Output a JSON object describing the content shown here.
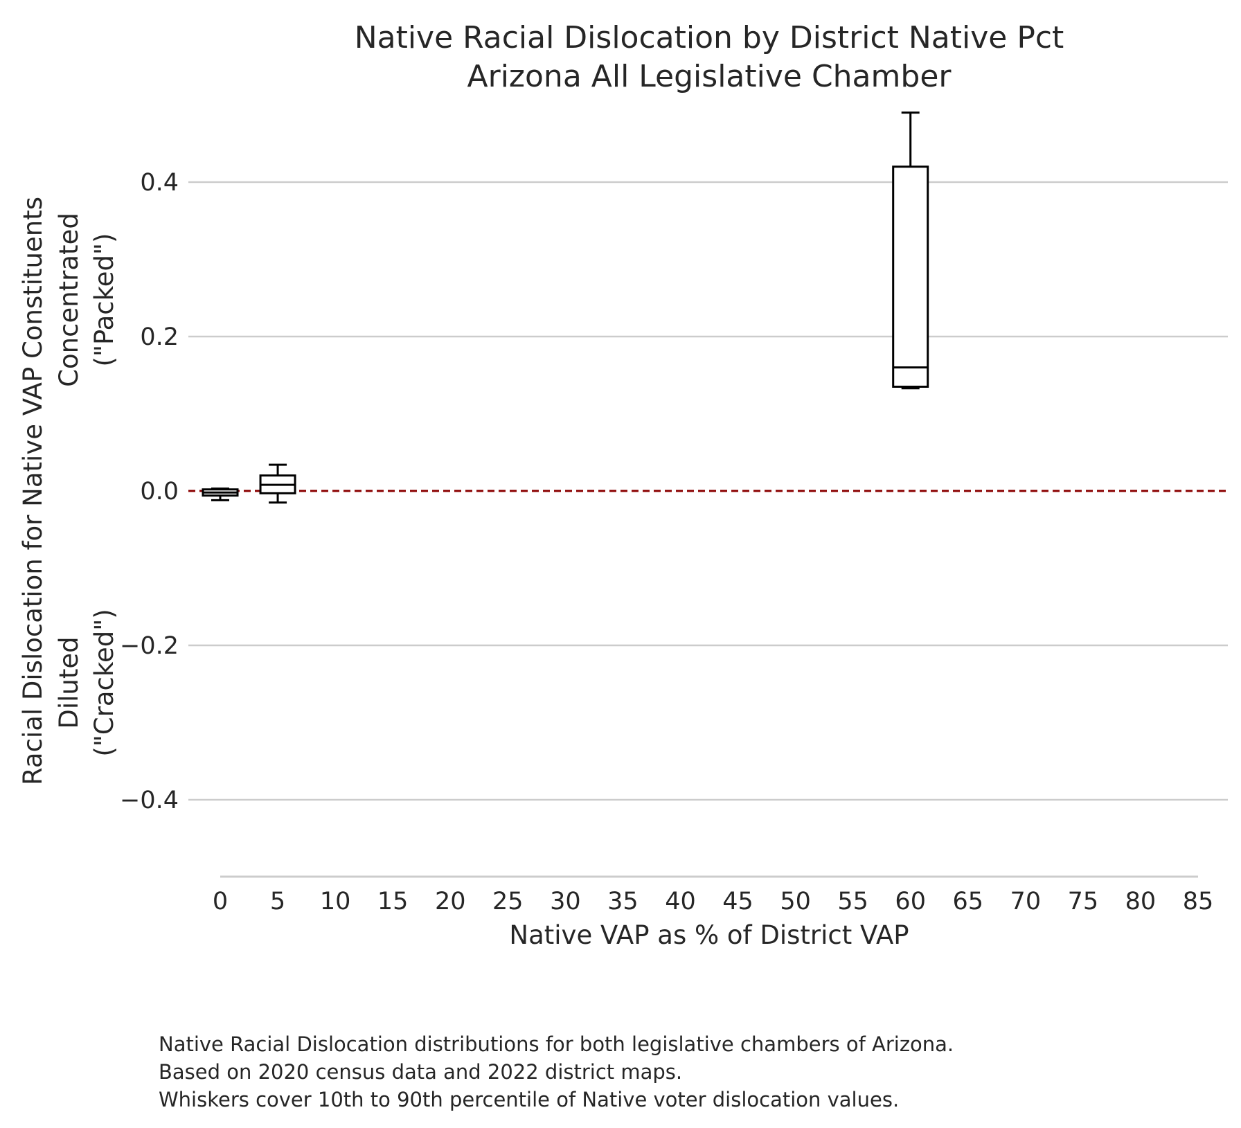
{
  "chart_data": {
    "type": "box",
    "title": [
      "Native Racial Dislocation by District Native Pct",
      "Arizona All Legislative Chamber"
    ],
    "xlabel": "Native VAP as % of District VAP",
    "ylabel": [
      "Racial Dislocation for Native VAP Constituents",
      "Diluted",
      "(\"Cracked\")",
      "Concentrated",
      "(\"Packed\")"
    ],
    "xlim": [
      0,
      85
    ],
    "ylim": [
      -0.5,
      0.5
    ],
    "x_ticks": [
      0,
      5,
      10,
      15,
      20,
      25,
      30,
      35,
      40,
      45,
      50,
      55,
      60,
      65,
      70,
      75,
      80,
      85
    ],
    "x_tick_labels": [
      "0",
      "5",
      "10",
      "15",
      "20",
      "25",
      "30",
      "35",
      "40",
      "45",
      "50",
      "55",
      "60",
      "65",
      "70",
      "75",
      "80",
      "85"
    ],
    "y_ticks": [
      0.4,
      0.2,
      0.0,
      -0.2,
      -0.4
    ],
    "y_tick_labels": [
      "0.4",
      "0.2",
      "0.0",
      "−0.2",
      "−0.4"
    ],
    "grid": "horizontal",
    "reference_line": {
      "y": 0.0,
      "style": "dashed",
      "color": "#8b0000"
    },
    "boxes": [
      {
        "x": 0,
        "whisker_low": -0.012,
        "q1": -0.006,
        "median": -0.002,
        "q3": 0.002,
        "whisker_high": 0.003
      },
      {
        "x": 5,
        "whisker_low": -0.015,
        "q1": -0.003,
        "median": 0.008,
        "q3": 0.02,
        "whisker_high": 0.034
      },
      {
        "x": 60,
        "whisker_low": 0.133,
        "q1": 0.135,
        "median": 0.16,
        "q3": 0.42,
        "whisker_high": 0.49
      }
    ],
    "colors": {
      "box": "#000000",
      "grid": "#cccccc",
      "reference": "#8b0000",
      "text": "#262626"
    }
  },
  "caption": [
    "Native Racial Dislocation distributions for both legislative chambers of Arizona.",
    "Based on 2020 census data and 2022 district maps.",
    "Whiskers cover 10th to 90th percentile of Native voter dislocation values."
  ]
}
